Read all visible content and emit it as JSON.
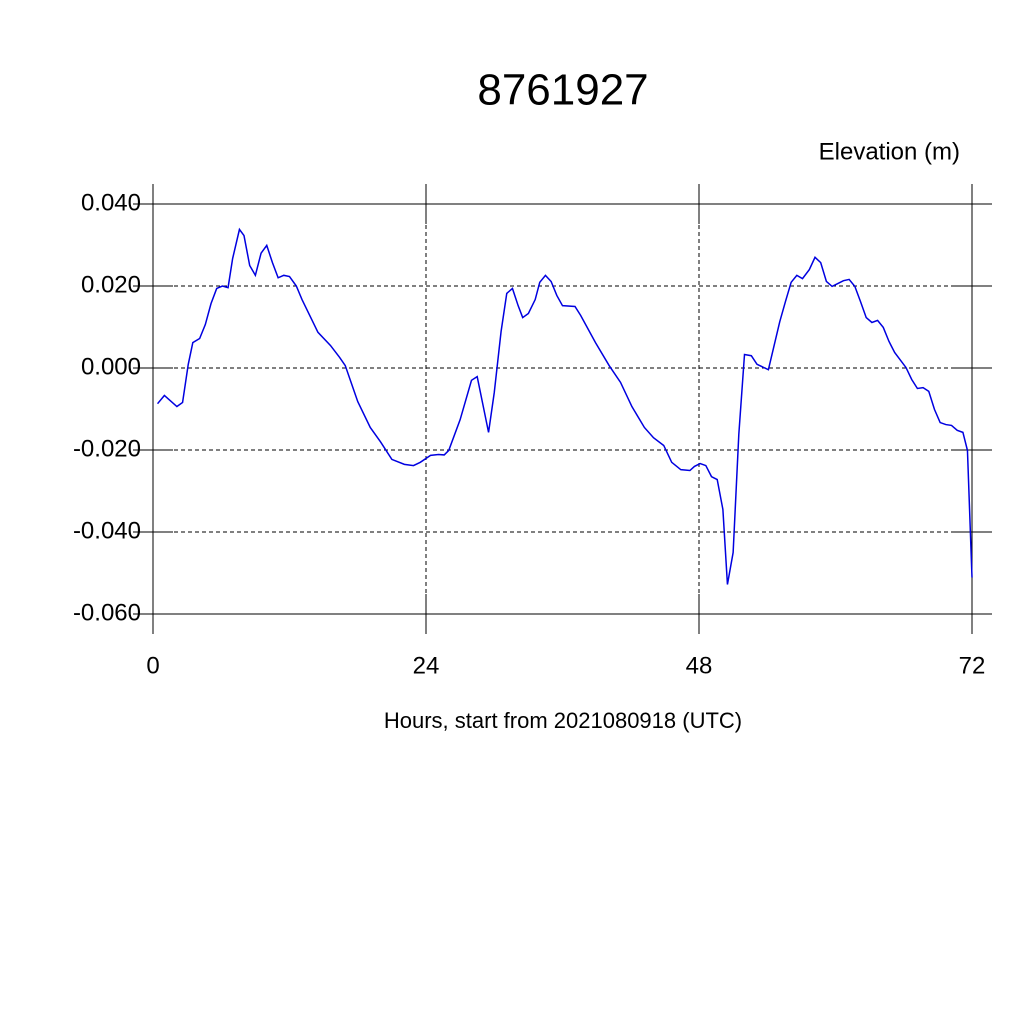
{
  "chart_data": {
    "type": "line",
    "title": "8761927",
    "ylabel": "Elevation (m)",
    "xlabel": "Hours, start from 2021080918 (UTC)",
    "xlim": [
      0,
      72
    ],
    "xticks": [
      0,
      24,
      48,
      72
    ],
    "ylim": [
      -0.06,
      0.04
    ],
    "yticks": [
      {
        "value": -0.06,
        "label": "-0.060"
      },
      {
        "value": -0.04,
        "label": "-0.040"
      },
      {
        "value": -0.02,
        "label": "-0.020"
      },
      {
        "value": 0,
        "label": "0.000"
      },
      {
        "value": 0.02,
        "label": "0.020"
      },
      {
        "value": 0.04,
        "label": "0.040"
      }
    ],
    "grid": true,
    "x": [
      0.4,
      1,
      2.1,
      2.6,
      3.1,
      3.5,
      4.1,
      4.6,
      5.1,
      5.6,
      6.1,
      6.6,
      7,
      7.6,
      8,
      8.5,
      9,
      9.5,
      10,
      10.5,
      11,
      11.5,
      12,
      12.6,
      13.1,
      14.5,
      15.6,
      16.4,
      16.9,
      18,
      19.1,
      20,
      21,
      22.1,
      22.9,
      23.5,
      24.4,
      25.1,
      25.6,
      26,
      27,
      28,
      28.5,
      29.5,
      30,
      30.6,
      31.1,
      31.6,
      32.1,
      32.5,
      33,
      33.6,
      34,
      34.5,
      35,
      35.5,
      36,
      37.1,
      37.6,
      38.9,
      40.1,
      41.1,
      42.1,
      43.2,
      44,
      44.9,
      45.6,
      46.4,
      47.2,
      47.6,
      48.1,
      48.6,
      49.1,
      49.6,
      50.1,
      50.5,
      51,
      51.5,
      52,
      52.6,
      53.1,
      54.1,
      55.1,
      55.6,
      56.1,
      56.6,
      57.1,
      57.7,
      58.2,
      58.7,
      59.2,
      59.7,
      60.2,
      60.7,
      61.2,
      61.7,
      62.2,
      62.7,
      63.2,
      63.7,
      64.2,
      64.7,
      65.2,
      66.2,
      66.7,
      67.2,
      67.7,
      68.2,
      68.7,
      69.2,
      69.7,
      70.2,
      70.7,
      71.2,
      71.6,
      72
    ],
    "series": [
      {
        "name": "Elevation",
        "color": "#0000e0",
        "values": [
          -0.0087,
          -0.0067,
          -0.0094,
          -0.0084,
          0.0009,
          0.0062,
          0.0072,
          0.0106,
          0.0157,
          0.0194,
          0.02,
          0.0196,
          0.0267,
          0.0338,
          0.0323,
          0.025,
          0.0226,
          0.028,
          0.0299,
          0.0257,
          0.022,
          0.0226,
          0.0223,
          0.02,
          0.0167,
          0.0087,
          0.0055,
          0.0026,
          0.0006,
          -0.0082,
          -0.0145,
          -0.018,
          -0.0223,
          -0.0235,
          -0.0238,
          -0.023,
          -0.0213,
          -0.0211,
          -0.0212,
          -0.0201,
          -0.0126,
          -0.003,
          -0.0021,
          -0.0157,
          -0.006,
          0.0089,
          0.0182,
          0.0194,
          0.0152,
          0.0123,
          0.0133,
          0.0167,
          0.0209,
          0.0226,
          0.0211,
          0.0177,
          0.0152,
          0.015,
          0.0128,
          0.0062,
          0.0006,
          -0.0035,
          -0.0094,
          -0.0145,
          -0.017,
          -0.0189,
          -0.023,
          -0.0248,
          -0.025,
          -0.024,
          -0.0233,
          -0.0238,
          -0.0265,
          -0.0272,
          -0.0345,
          -0.0528,
          -0.045,
          -0.0162,
          0.0033,
          0.003,
          0.0009,
          -0.0004,
          0.0113,
          0.0162,
          0.0209,
          0.0226,
          0.0218,
          0.024,
          0.027,
          0.0257,
          0.0211,
          0.0199,
          0.0206,
          0.0213,
          0.0216,
          0.0199,
          0.0162,
          0.0123,
          0.0111,
          0.0116,
          0.0099,
          0.0065,
          0.0038,
          0.0001,
          -0.0028,
          -0.005,
          -0.0048,
          -0.0057,
          -0.0101,
          -0.0133,
          -0.0138,
          -0.014,
          -0.0152,
          -0.0157,
          -0.0201,
          -0.0511
        ]
      }
    ]
  }
}
